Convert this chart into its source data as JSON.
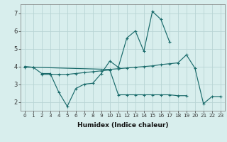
{
  "xlabel": "Humidex (Indice chaleur)",
  "x": [
    0,
    1,
    2,
    3,
    4,
    5,
    6,
    7,
    8,
    9,
    10,
    11,
    12,
    13,
    14,
    15,
    16,
    17,
    18,
    19,
    20,
    21,
    22,
    23
  ],
  "line_main": [
    4.0,
    3.95,
    3.6,
    3.6,
    2.55,
    1.75,
    2.75,
    3.0,
    3.05,
    3.6,
    4.3,
    3.95,
    5.6,
    6.0,
    4.85,
    7.1,
    6.65,
    5.4,
    null,
    null,
    null,
    null,
    null,
    null
  ],
  "line_upper": [
    3.95,
    3.95,
    null,
    null,
    null,
    null,
    null,
    null,
    null,
    null,
    3.83,
    3.87,
    3.91,
    3.95,
    3.99,
    4.03,
    4.1,
    4.15,
    4.2,
    4.65,
    3.9,
    1.9,
    2.3,
    2.3
  ],
  "line_lower": [
    null,
    null,
    3.55,
    3.55,
    3.55,
    3.55,
    3.6,
    3.65,
    3.7,
    3.75,
    3.8,
    2.4,
    2.4,
    2.4,
    2.4,
    2.4,
    2.4,
    2.4,
    2.35,
    2.35,
    null,
    null,
    null,
    null
  ],
  "bg_color": "#d8eeed",
  "grid_color": "#b8d4d4",
  "line_color": "#1a6b6b",
  "ylim": [
    1.5,
    7.5
  ],
  "yticks": [
    2,
    3,
    4,
    5,
    6,
    7
  ],
  "xlim": [
    -0.5,
    23.5
  ]
}
